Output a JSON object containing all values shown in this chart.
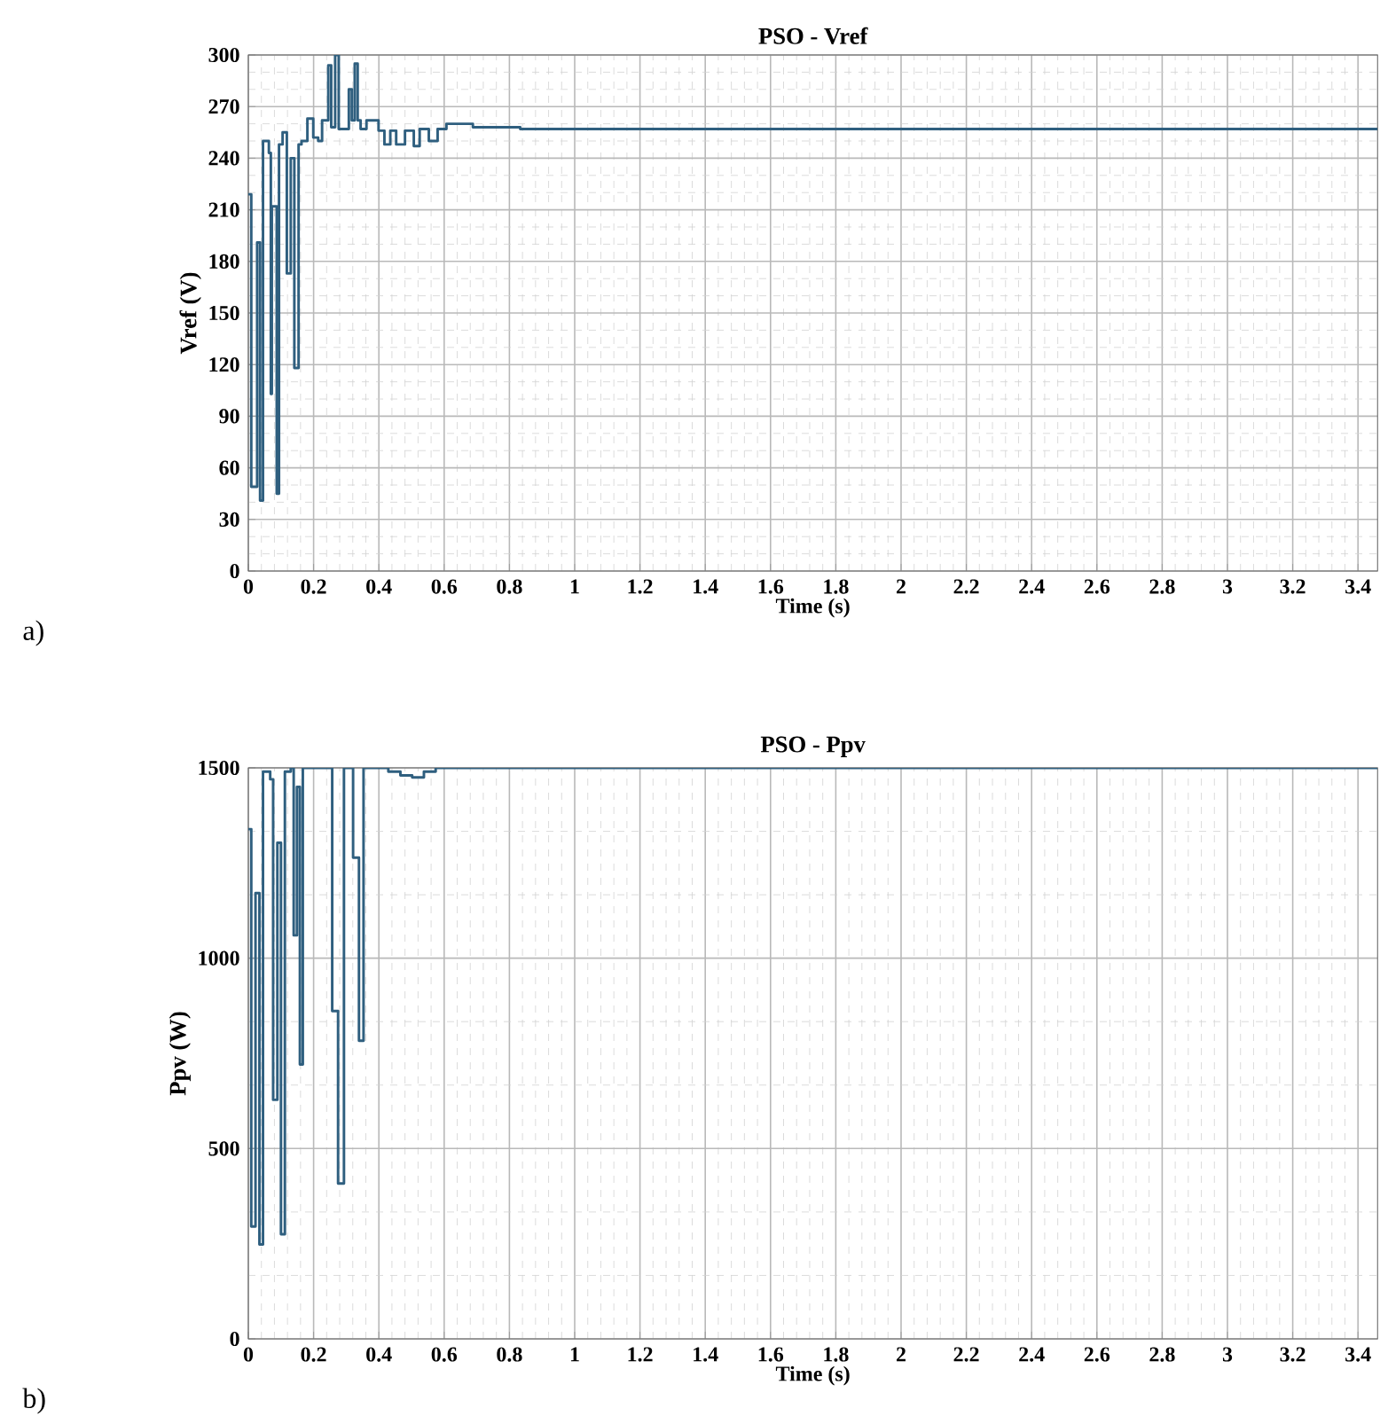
{
  "chart_data": [
    {
      "type": "step",
      "title": "PSO - Vref",
      "xlabel": "Time (s)",
      "ylabel": "Vref (V)",
      "annotations": [
        "a)"
      ],
      "grid": true,
      "xlim": [
        0,
        3.46
      ],
      "ylim": [
        0,
        300
      ],
      "xticks": [
        0,
        0.2,
        0.4,
        0.6,
        0.8,
        1,
        1.2,
        1.4,
        1.6,
        1.8,
        2,
        2.2,
        2.4,
        2.6,
        2.8,
        3,
        3.2,
        3.4
      ],
      "yticks": [
        0,
        30,
        60,
        90,
        120,
        150,
        180,
        210,
        240,
        270,
        300
      ],
      "series": [
        {
          "color": "#2f5f7f",
          "x": [
            0,
            0.009,
            0.027,
            0.036,
            0.045,
            0.063,
            0.069,
            0.072,
            0.087,
            0.094,
            0.105,
            0.118,
            0.13,
            0.141,
            0.154,
            0.163,
            0.181,
            0.199,
            0.214,
            0.226,
            0.245,
            0.254,
            0.266,
            0.277,
            0.286,
            0.308,
            0.317,
            0.326,
            0.335,
            0.344,
            0.362,
            0.399,
            0.417,
            0.435,
            0.453,
            0.48,
            0.507,
            0.525,
            0.553,
            0.58,
            0.607,
            0.688,
            0.743,
            0.833,
            0.888,
            3.46
          ],
          "values": [
            219,
            49,
            191,
            41,
            250,
            243,
            103,
            212,
            45,
            248,
            255,
            173,
            240,
            118,
            248,
            250,
            263,
            252,
            250,
            262,
            294,
            258,
            300,
            257,
            257,
            280,
            262,
            295,
            262,
            257,
            262,
            256,
            248,
            256,
            248,
            256,
            247,
            257,
            250,
            257,
            260,
            258,
            258,
            257,
            257,
            257
          ]
        }
      ]
    },
    {
      "type": "step",
      "title": "PSO - Ppv",
      "xlabel": "Time (s)",
      "ylabel": "Ppv (W)",
      "annotations": [
        "b)"
      ],
      "grid": true,
      "xlim": [
        0,
        3.46
      ],
      "ylim": [
        0,
        1500
      ],
      "xticks": [
        0,
        0.2,
        0.4,
        0.6,
        0.8,
        1,
        1.2,
        1.4,
        1.6,
        1.8,
        2,
        2.2,
        2.4,
        2.6,
        2.8,
        3,
        3.2,
        3.4
      ],
      "yticks": [
        0,
        500,
        1000,
        1500
      ],
      "series": [
        {
          "color": "#2f5f7f",
          "x": [
            0,
            0.009,
            0.022,
            0.034,
            0.045,
            0.067,
            0.076,
            0.089,
            0.1,
            0.112,
            0.13,
            0.139,
            0.149,
            0.158,
            0.167,
            0.257,
            0.275,
            0.293,
            0.321,
            0.339,
            0.353,
            0.429,
            0.466,
            0.502,
            0.538,
            0.574,
            3.46
          ],
          "values": [
            1339,
            295,
            1171,
            248,
            1490,
            1470,
            628,
            1303,
            275,
            1490,
            1500,
            1060,
            1450,
            721,
            1500,
            861,
            408,
            1500,
            1264,
            783,
            1500,
            1490,
            1480,
            1475,
            1490,
            1500,
            1500
          ]
        }
      ]
    }
  ]
}
